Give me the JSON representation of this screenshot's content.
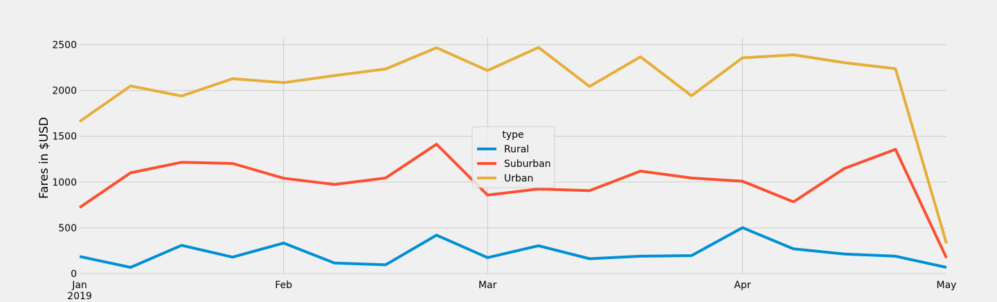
{
  "chart_data": {
    "type": "line",
    "title": "",
    "xlabel": "",
    "ylabel": "Fares in $USD",
    "x": [
      "2019-01-06",
      "2019-01-13",
      "2019-01-20",
      "2019-01-27",
      "2019-02-03",
      "2019-02-10",
      "2019-02-17",
      "2019-02-24",
      "2019-03-03",
      "2019-03-10",
      "2019-03-17",
      "2019-03-24",
      "2019-03-31",
      "2019-04-07",
      "2019-04-14",
      "2019-04-21",
      "2019-04-28",
      "2019-05-05"
    ],
    "xlim": [
      "2019-01-06",
      "2019-05-05"
    ],
    "x_ticks": [
      {
        "date": "2019-01-06",
        "label": "Jan",
        "sublabel": "2019"
      },
      {
        "date": "2019-02-03",
        "label": "Feb",
        "sublabel": ""
      },
      {
        "date": "2019-03-03",
        "label": "Mar",
        "sublabel": ""
      },
      {
        "date": "2019-04-07",
        "label": "Apr",
        "sublabel": ""
      },
      {
        "date": "2019-05-05",
        "label": "May",
        "sublabel": ""
      }
    ],
    "ylim": [
      0,
      2580
    ],
    "y_ticks": [
      0,
      500,
      1000,
      1500,
      2000,
      2500
    ],
    "grid": true,
    "legend": {
      "title": "type",
      "placement": "center"
    },
    "series": [
      {
        "name": "Rural",
        "color": "#008fd5",
        "values": [
          187,
          68,
          309,
          180,
          334,
          116,
          96,
          420,
          175,
          304,
          163,
          190,
          197,
          502,
          270,
          214,
          190,
          68
        ]
      },
      {
        "name": "Suburban",
        "color": "#fc4f30",
        "values": [
          722,
          1101,
          1216,
          1203,
          1042,
          974,
          1044,
          1413,
          858,
          924,
          906,
          1120,
          1044,
          1009,
          784,
          1149,
          1357,
          172
        ]
      },
      {
        "name": "Urban",
        "color": "#e5ae38",
        "values": [
          1661,
          2050,
          1940,
          2129,
          2086,
          2163,
          2235,
          2467,
          2218,
          2470,
          2044,
          2368,
          1943,
          2357,
          2390,
          2304,
          2238,
          330
        ]
      }
    ]
  }
}
